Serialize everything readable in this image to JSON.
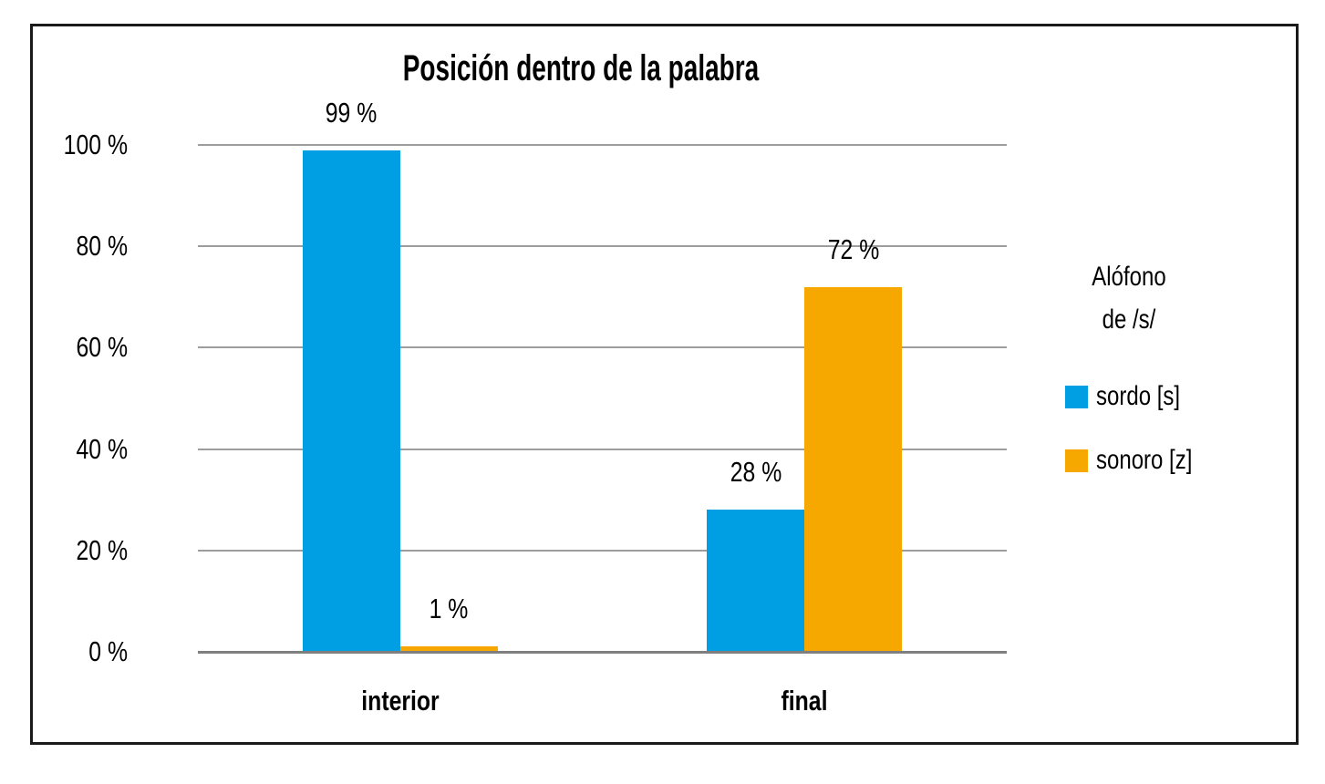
{
  "chart_data": {
    "type": "bar",
    "title": "Posición dentro de la palabra",
    "categories": [
      "interior",
      "final"
    ],
    "series": [
      {
        "name": "sordo [s]",
        "color": "#009FE3",
        "values": [
          99,
          28
        ],
        "value_labels": [
          "99 %",
          "28 %"
        ]
      },
      {
        "name": "sonoro [z]",
        "color": "#F6A800",
        "values": [
          1,
          72
        ],
        "value_labels": [
          "1 %",
          "72 %"
        ]
      }
    ],
    "y_axis": {
      "tick_values": [
        0,
        20,
        40,
        60,
        80,
        100
      ],
      "tick_labels": [
        "0 %",
        "20 %",
        "40 %",
        "60 %",
        "80 %",
        "100 %"
      ],
      "ylim": [
        0,
        100
      ],
      "grid": true
    },
    "legend": {
      "position": "right",
      "heading_lines": [
        "Alófono",
        "de /s/"
      ]
    },
    "colors": {
      "grid": "#9d9d9d",
      "axis": "#7f7f7f",
      "border": "#1a1a1a",
      "text": "#000000"
    }
  }
}
